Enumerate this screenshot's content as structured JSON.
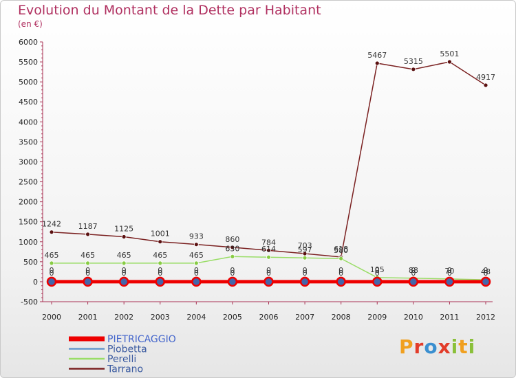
{
  "title": "Evolution du Montant de la Dette par Habitant",
  "unit_label": "(en €)",
  "logo_text": "Proxiti",
  "chart_data": {
    "type": "line",
    "x": [
      "2000",
      "2001",
      "2002",
      "2003",
      "2004",
      "2005",
      "2006",
      "2007",
      "2008",
      "2009",
      "2010",
      "2011",
      "2012"
    ],
    "ylim": [
      -500,
      6000
    ],
    "yticks": [
      -500,
      0,
      500,
      1000,
      1500,
      2000,
      2500,
      3000,
      3500,
      4000,
      4500,
      5000,
      5500,
      6000
    ],
    "grid": false,
    "legend_position": "bottom-left",
    "series": [
      {
        "name": "PIETRICAGGIO",
        "color": "#ee0000",
        "values": [
          0,
          0,
          0,
          0,
          0,
          0,
          0,
          0,
          0,
          0,
          0,
          0,
          0
        ],
        "labels": [
          "0",
          "0",
          "0",
          "0",
          "0",
          "0",
          "0",
          "0",
          "0",
          "0",
          "0",
          "0",
          "0"
        ]
      },
      {
        "name": "Piobetta",
        "color": "#6699cc",
        "values": [
          0,
          0,
          0,
          0,
          0,
          0,
          0,
          0,
          0,
          0,
          0,
          0,
          0
        ],
        "labels": [
          "0",
          "0",
          "0",
          "0",
          "0",
          "0",
          "0",
          "0",
          "0",
          "0",
          "0",
          "0",
          "0"
        ]
      },
      {
        "name": "Perelli",
        "color": "#99dd66",
        "values": [
          465,
          465,
          465,
          465,
          465,
          630,
          614,
          597,
          580,
          105,
          88,
          70,
          48
        ],
        "labels": [
          "465",
          "465",
          "465",
          "465",
          "465",
          "630",
          "614",
          "597",
          "580",
          "105",
          "88",
          "70",
          "48"
        ]
      },
      {
        "name": "Tarrano",
        "color": "#7a2020",
        "values": [
          1242,
          1187,
          1125,
          1001,
          933,
          860,
          784,
          703,
          618,
          5467,
          5315,
          5501,
          4917
        ],
        "labels": [
          "1242",
          "1187",
          "1125",
          "1001",
          "933",
          "860",
          "784",
          "703",
          "618",
          "5467",
          "5315",
          "5501",
          "4917"
        ]
      }
    ]
  }
}
